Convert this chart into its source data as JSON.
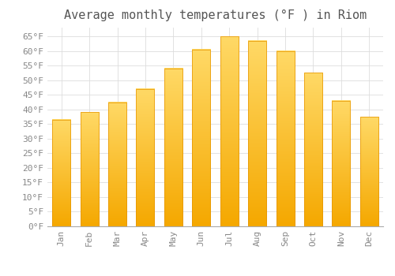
{
  "title": "Average monthly temperatures (°F ) in Riom",
  "months": [
    "Jan",
    "Feb",
    "Mar",
    "Apr",
    "May",
    "Jun",
    "Jul",
    "Aug",
    "Sep",
    "Oct",
    "Nov",
    "Dec"
  ],
  "values": [
    36.5,
    39.0,
    42.5,
    47.0,
    54.0,
    60.5,
    65.0,
    63.5,
    60.0,
    52.5,
    43.0,
    37.5
  ],
  "bar_color_left": "#F5A623",
  "bar_color_right": "#FFD966",
  "bar_edge_color": "#E59400",
  "background_color": "#FFFFFF",
  "grid_color": "#DDDDDD",
  "ylim": [
    0,
    68
  ],
  "yticks": [
    0,
    5,
    10,
    15,
    20,
    25,
    30,
    35,
    40,
    45,
    50,
    55,
    60,
    65
  ],
  "title_fontsize": 11,
  "tick_fontsize": 8,
  "font_family": "monospace"
}
